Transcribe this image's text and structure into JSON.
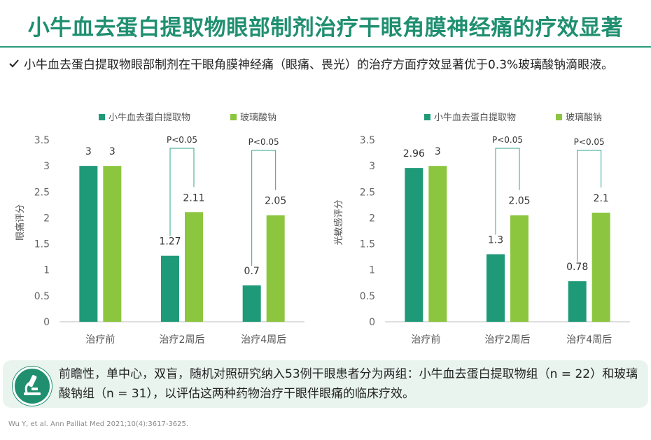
{
  "title": "小牛血去蛋白提取物眼部制剂治疗干眼角膜神经痛的疗效显著",
  "bullet": {
    "icon": "check-icon",
    "text": "小牛血去蛋白提取物眼部制剂在干眼角膜神经痛（眼痛、畏光）的治疗方面疗效显著优于0.3%玻璃酸钠滴眼液。"
  },
  "colors": {
    "series1": "#1f9a78",
    "series2": "#8cc63f",
    "title": "#1f8f70",
    "bracket": "#2ca58d"
  },
  "chart_data": [
    {
      "type": "bar",
      "ylabel": "眼痛评分",
      "ylim": [
        0,
        3.5
      ],
      "yticks": [
        "0",
        "0.5",
        "1",
        "1.5",
        "2",
        "2.5",
        "3",
        "3.5"
      ],
      "categories": [
        "治疗前",
        "治疗2周后",
        "治疗4周后"
      ],
      "series": [
        {
          "name": "小牛血去蛋白提取物",
          "values": [
            3,
            1.27,
            0.7
          ]
        },
        {
          "name": "玻璃酸钠",
          "values": [
            3,
            2.11,
            2.05
          ]
        }
      ],
      "value_labels": [
        [
          "3",
          "1.27",
          "0.7"
        ],
        [
          "3",
          "2.11",
          "2.05"
        ]
      ],
      "annotations": [
        {
          "category": "治疗2周后",
          "text": "P<0.05"
        },
        {
          "category": "治疗4周后",
          "text": "P<0.05"
        }
      ],
      "legend": "top",
      "grid": false
    },
    {
      "type": "bar",
      "ylabel": "光敏感评分",
      "ylim": [
        0,
        3.5
      ],
      "yticks": [
        "0",
        "0.5",
        "1",
        "1.5",
        "2",
        "2.5",
        "3",
        "3.5"
      ],
      "categories": [
        "治疗前",
        "治疗2周后",
        "治疗4周后"
      ],
      "series": [
        {
          "name": "小牛血去蛋白提取物",
          "values": [
            2.96,
            1.3,
            0.78
          ]
        },
        {
          "name": "玻璃酸钠",
          "values": [
            3,
            2.05,
            2.1
          ]
        }
      ],
      "value_labels": [
        [
          "2.96",
          "1.3",
          "0.78"
        ],
        [
          "3",
          "2.05",
          "2.1"
        ]
      ],
      "annotations": [
        {
          "category": "治疗2周后",
          "text": "P<0.05"
        },
        {
          "category": "治疗4周后",
          "text": "P<0.05"
        }
      ],
      "legend": "top",
      "grid": false
    }
  ],
  "footer": {
    "icon": "microscope-icon",
    "text": "前瞻性，单中心，双盲，随机对照研究纳入53例干眼患者分为两组：小牛血去蛋白提取物组（n = 22）和玻璃酸钠组（n = 31），以评估这两种药物治疗干眼伴眼痛的临床疗效。"
  },
  "citation": "Wu Y, et al. Ann Palliat Med 2021;10(4):3617-3625."
}
